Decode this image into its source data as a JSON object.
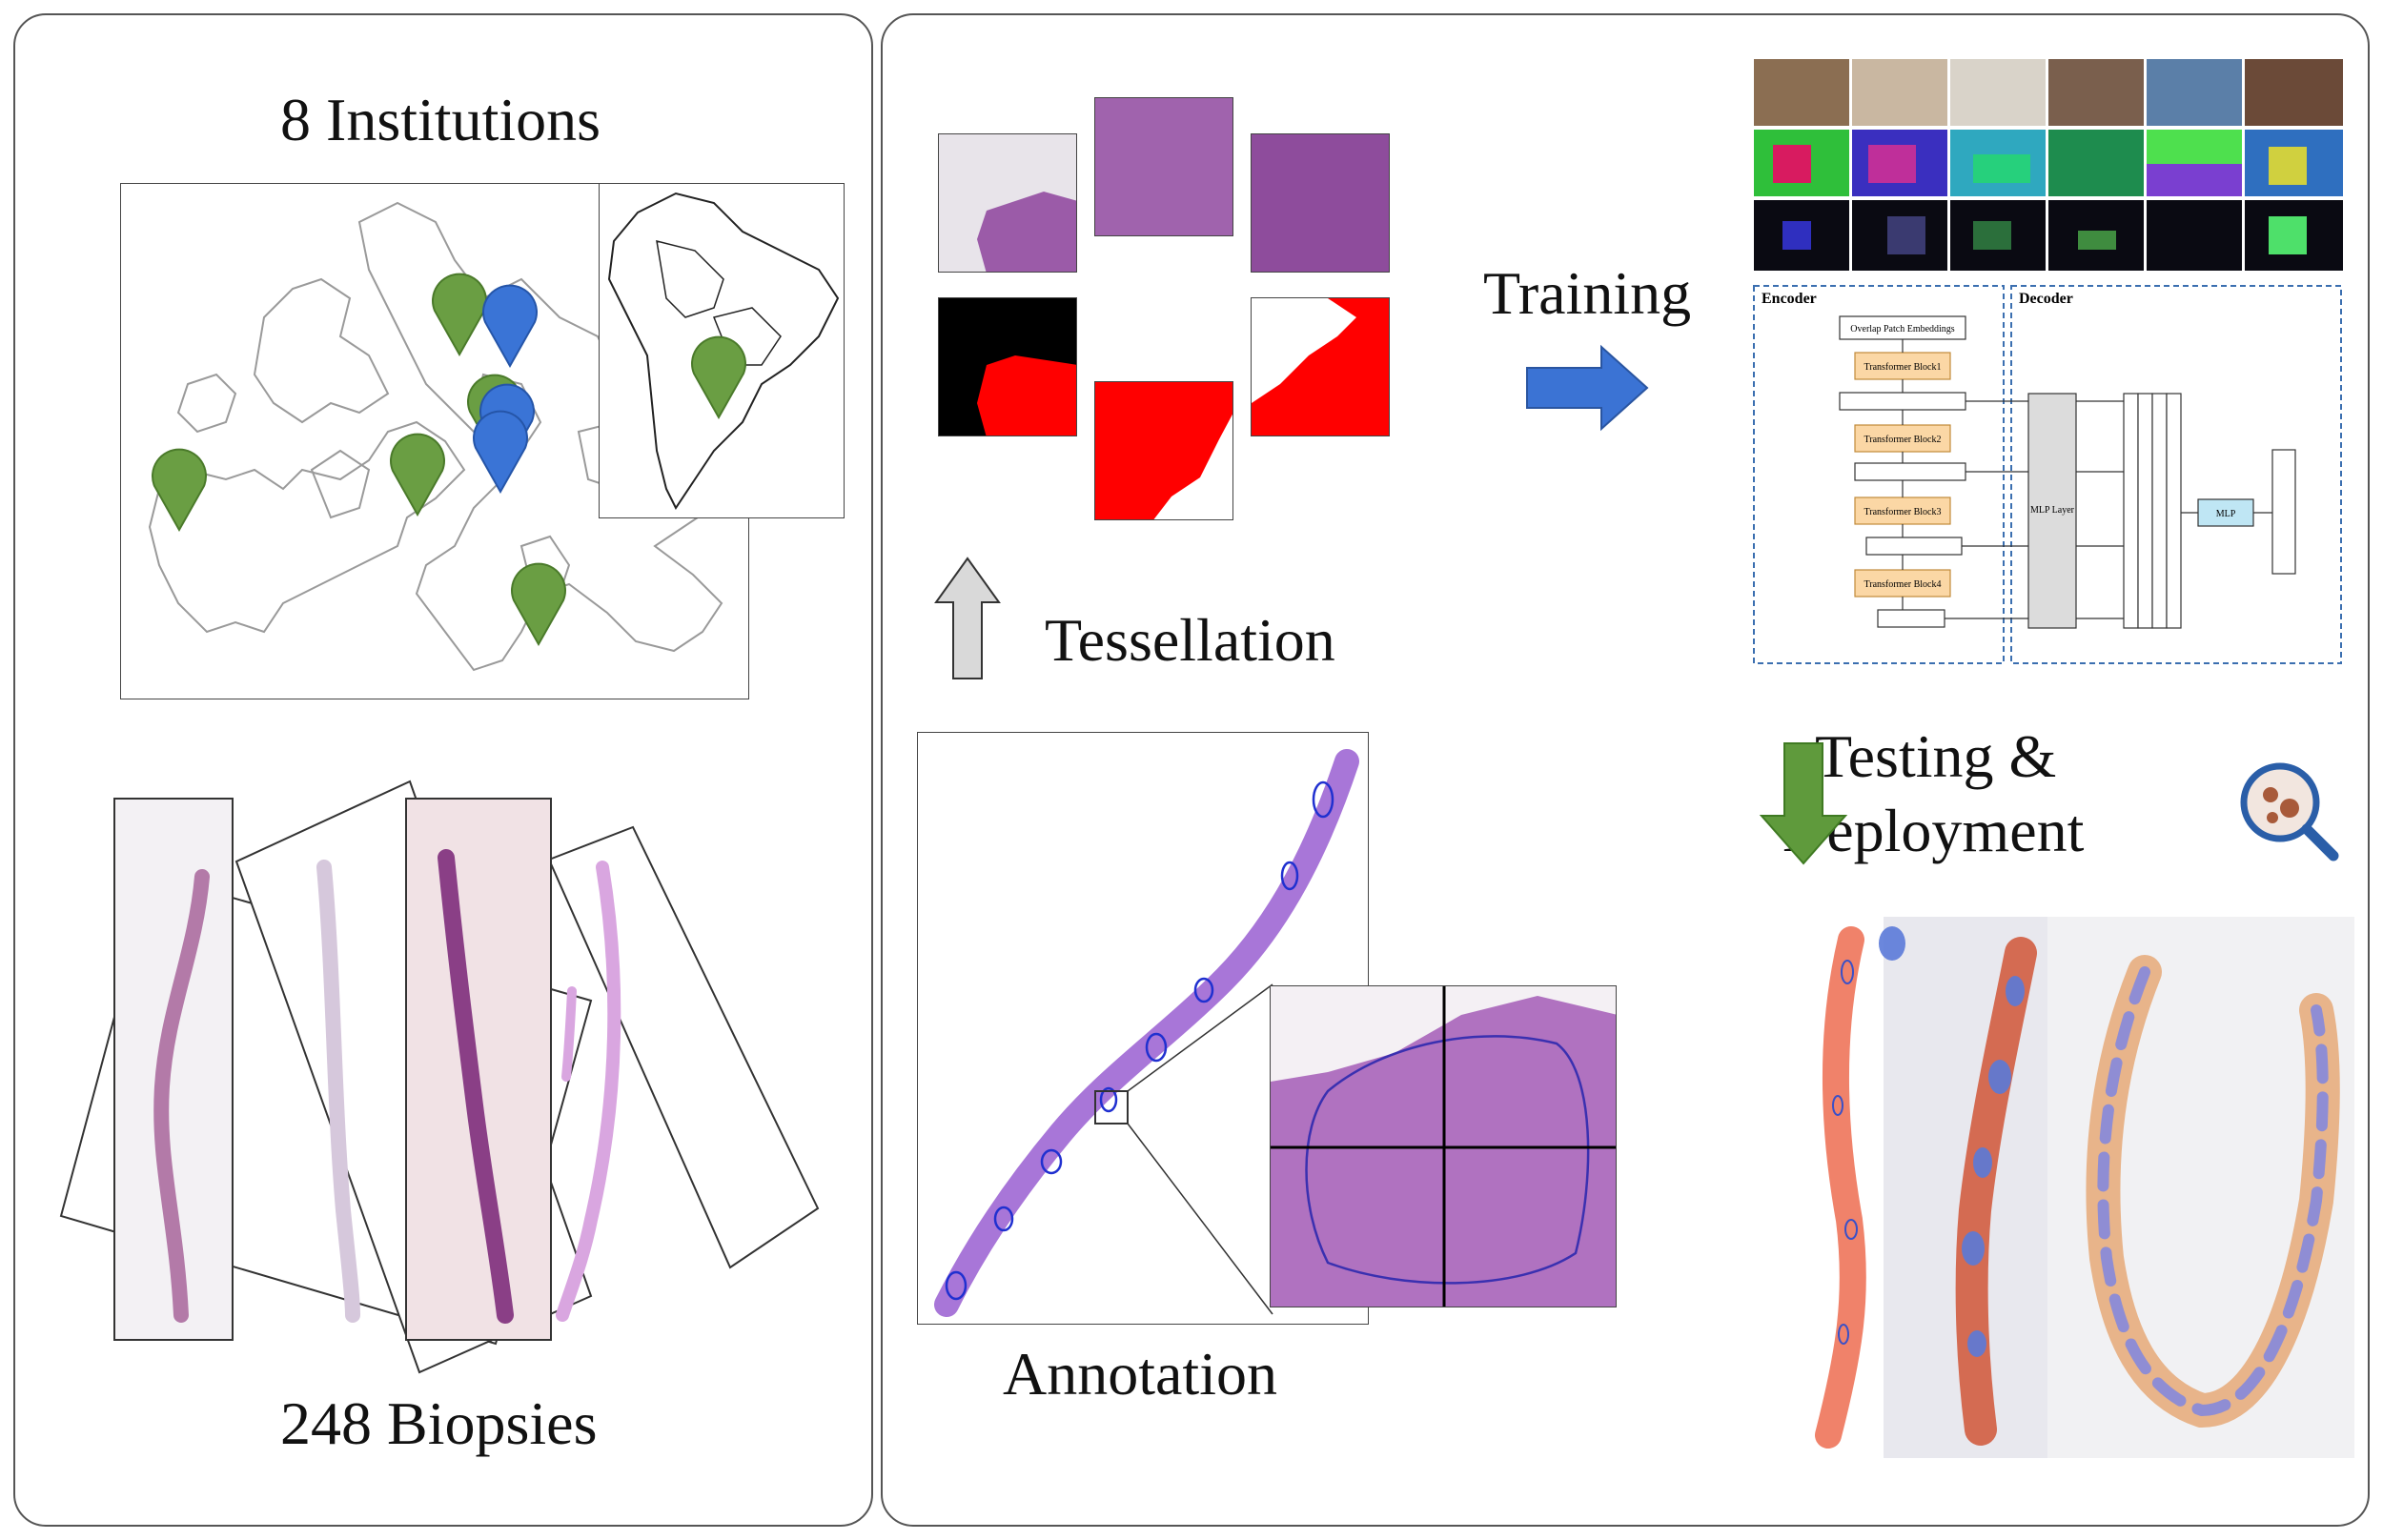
{
  "left_panel": {
    "title": "8 Institutions",
    "caption": "248 Biopsies"
  },
  "right_panel": {
    "tessellation_label": "Tessellation",
    "annotation_label": "Annotation",
    "training_label": "Training",
    "testing_label_line1": "Testing &",
    "testing_label_line2": "Deployment"
  },
  "network": {
    "encoder_title": "Encoder",
    "decoder_title": "Decoder",
    "patch_embed": "Overlap Patch Embeddings",
    "blocks": [
      "Transformer Block1",
      "Transformer Block2",
      "Transformer Block3",
      "Transformer Block4"
    ],
    "mlp_layer": "MLP Layer",
    "mlp": "MLP"
  },
  "colors": {
    "green_pin": "#6a9e43",
    "blue_pin": "#3a74d6",
    "arrow_blue": "#3b73d4",
    "arrow_green": "#5f9a3c",
    "arrow_gray": "#d9d9d9",
    "mask_red": "#ff0000",
    "tissue_purple": "#9b5ba8",
    "block_orange": "#fbd7a5",
    "mlp_cyan": "#bfe6f4"
  },
  "icons": [
    "map-pin-icon",
    "magnifier-icon"
  ]
}
